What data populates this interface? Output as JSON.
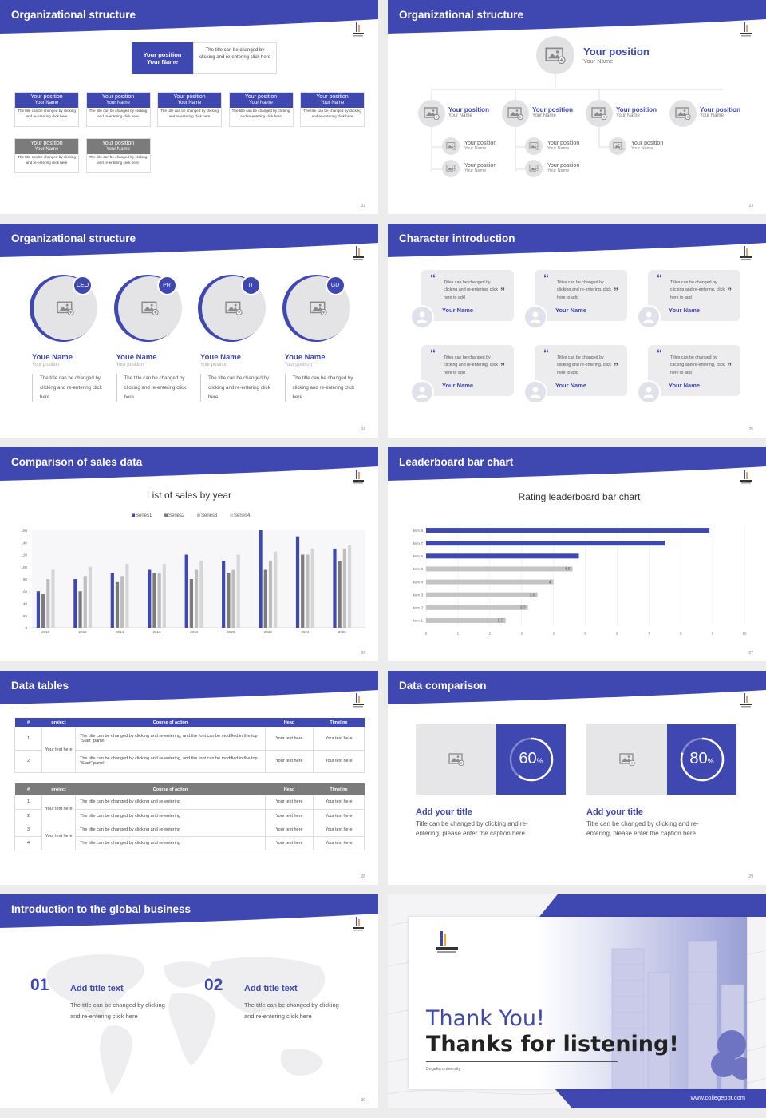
{
  "colors": {
    "accent": "#3f47b1",
    "gray": "#7b7b7b",
    "light": "#e6e6e8"
  },
  "s22": {
    "title": "Organizational structure",
    "page": "22",
    "top": {
      "pos": "Your position",
      "name": "Your Name",
      "desc": "The title can be changed by clicking and re-entering click here"
    },
    "row1": [
      {
        "pos": "Your position",
        "name": "Your Name",
        "desc": "The title can be changed by clicking and re-entering click here"
      },
      {
        "pos": "Your position",
        "name": "Your Name",
        "desc": "The title can be changed by clicking and re-entering click here"
      },
      {
        "pos": "Your position",
        "name": "Your Name",
        "desc": "The title can be changed by clicking and re-entering click here"
      },
      {
        "pos": "Your position",
        "name": "Your Name",
        "desc": "The title can be changed by clicking and re-entering click here"
      },
      {
        "pos": "Your position",
        "name": "Your Name",
        "desc": "The title can be changed by clicking and re-entering click here"
      }
    ],
    "row2": [
      {
        "pos": "Your position",
        "name": "Your Name",
        "desc": "The title can be changed by clicking and re-entering click here"
      },
      {
        "pos": "Your position",
        "name": "Your Name",
        "desc": "The title can be changed by clicking and re-entering click here"
      }
    ]
  },
  "s23": {
    "title": "Organizational structure",
    "page": "23",
    "top": {
      "pos": "Your position",
      "name": "Your Name"
    },
    "level2": [
      {
        "pos": "Your position",
        "name": "Your Name"
      },
      {
        "pos": "Your position",
        "name": "Your Name"
      },
      {
        "pos": "Your position",
        "name": "Your Name"
      },
      {
        "pos": "Your position",
        "name": "Your Name"
      }
    ],
    "level3": [
      {
        "pos": "Your position",
        "name": "Your Name"
      },
      {
        "pos": "Your position",
        "name": "Your Name"
      },
      {
        "pos": "Your position",
        "name": "Your Name"
      },
      {
        "pos": "Your position",
        "name": "Your Name"
      },
      {
        "pos": "Your position",
        "name": "Your Name"
      }
    ]
  },
  "s24": {
    "title": "Organizational structure",
    "page": "24",
    "people": [
      {
        "badge": "CEO",
        "name": "Youe Name",
        "pos": "Your position",
        "desc": "The title can be changed by clicking and re-entering click here"
      },
      {
        "badge": "PR",
        "name": "Youe Name",
        "pos": "Your position",
        "desc": "The title can be changed by clicking and re-entering click here"
      },
      {
        "badge": "IT",
        "name": "Youe Name",
        "pos": "Your position",
        "desc": "The title can be changed by clicking and re-entering click here"
      },
      {
        "badge": "GD",
        "name": "Youe Name",
        "pos": "Your position",
        "desc": "The title can be changed by clicking and re-entering click here"
      }
    ]
  },
  "s25": {
    "title": "Character introduction",
    "page": "25",
    "quote_open": "“",
    "quote_close": "”",
    "cards": [
      {
        "text": "Titles can be changed by clicking and re-entering, click here to add",
        "name": "Your Name"
      },
      {
        "text": "Titles can be changed by clicking and re-entering, click here to add",
        "name": "Your Name"
      },
      {
        "text": "Titles can be changed by clicking and re-entering, click here to add",
        "name": "Your Name"
      },
      {
        "text": "Titles can be changed by clicking and re-entering, click here to add",
        "name": "Your Name"
      },
      {
        "text": "Titles can be changed by clicking and re-entering, click here to add",
        "name": "Your Name"
      },
      {
        "text": "Titles can be changed by clicking and re-entering, click here to add",
        "name": "Your Name"
      }
    ]
  },
  "s26": {
    "title": "Comparison of sales data",
    "page": "26"
  },
  "s27": {
    "title": "Leaderboard bar chart",
    "page": "27"
  },
  "s28": {
    "title": "Data tables",
    "page": "28",
    "t1": {
      "headers": [
        "#",
        "project",
        "Course of action",
        "Head",
        "Timeline"
      ],
      "project": "Your text here",
      "rows": [
        {
          "n": "1",
          "course": "The title can be changed by clicking and re-entering, and the font can be modified in the top \"Start\" panel",
          "head": "Your text here",
          "time": "Your text here"
        },
        {
          "n": "2",
          "course": "The title can be changed by clicking and re-entering, and the font can be modified in the top \"Start\" panel",
          "head": "Your text here",
          "time": "Your text here"
        }
      ]
    },
    "t2": {
      "headers": [
        "#",
        "project",
        "Course of action",
        "Head",
        "Timeline"
      ],
      "project1": "Your text here",
      "project2": "Your text here",
      "rows": [
        {
          "n": "1",
          "course": "The title can be changed by clicking and re-entering",
          "head": "Your text here",
          "time": "Your text here"
        },
        {
          "n": "2",
          "course": "The title can be changed by clicking and re-entering",
          "head": "Your text here",
          "time": "Your text here"
        },
        {
          "n": "3",
          "course": "The title can be changed by clicking and re-entering",
          "head": "Your text here",
          "time": "Your text here"
        },
        {
          "n": "4",
          "course": "The title can be changed by clicking and re-entering",
          "head": "Your text here",
          "time": "Your text here"
        }
      ]
    }
  },
  "s29": {
    "title": "Data comparison",
    "page": "29",
    "items": [
      {
        "pct": "60",
        "unit": "%",
        "progress": 0.6,
        "title": "Add your title",
        "desc": "Title can be changed by clicking and re-entering, please enter the caption here"
      },
      {
        "pct": "80",
        "unit": "%",
        "progress": 0.8,
        "title": "Add your title",
        "desc": "Title can be changed by clicking and re-entering, please enter the caption here"
      }
    ]
  },
  "s30": {
    "title": "Introduction to the global business",
    "page": "30",
    "items": [
      {
        "num": "01",
        "title": "Add title text",
        "desc": "The title can be changed by clicking and re-entering click here"
      },
      {
        "num": "02",
        "title": "Add title text",
        "desc": "The title can be changed by clicking and re-entering click here"
      }
    ]
  },
  "s31": {
    "thanks1": "Thank You!",
    "thanks2": "Thanks for listening!",
    "university": "Bogaka university",
    "site": "www.collegeppt.com"
  },
  "chart_data": [
    {
      "type": "bar",
      "title": "List of sales by year",
      "categories": [
        "2010",
        "2012",
        "2014",
        "2016",
        "2018",
        "2020",
        "2022",
        "2024",
        "2026"
      ],
      "series": [
        {
          "name": "Series1",
          "values": [
            60,
            80,
            90,
            95,
            120,
            110,
            160,
            150,
            130
          ]
        },
        {
          "name": "Series2",
          "values": [
            55,
            60,
            75,
            90,
            80,
            90,
            95,
            120,
            110
          ]
        },
        {
          "name": "Series3",
          "values": [
            80,
            85,
            85,
            90,
            95,
            95,
            110,
            120,
            130
          ]
        },
        {
          "name": "Series4",
          "values": [
            95,
            100,
            105,
            105,
            110,
            120,
            125,
            130,
            135
          ]
        }
      ],
      "ylim": [
        0,
        160
      ],
      "yticks": [
        0,
        20,
        40,
        60,
        80,
        100,
        120,
        140,
        160
      ],
      "legend": "top",
      "grid": false
    },
    {
      "type": "bar",
      "orientation": "horizontal",
      "title": "Rating leaderboard bar chart",
      "categories": [
        "Item 1",
        "Item 2",
        "Item 3",
        "Item 4",
        "Item 5",
        "Item 6",
        "Item 7",
        "Item 8"
      ],
      "values": [
        2.5,
        3.2,
        3.5,
        4,
        4.6,
        4.8,
        7.5,
        8.9
      ],
      "data_labels": [
        "2.5",
        "3.2",
        "3.5",
        "4",
        "4.6",
        "",
        "",
        ""
      ],
      "xlim": [
        0,
        10
      ],
      "xticks": [
        0,
        1,
        2,
        3,
        4,
        5,
        6,
        7,
        8,
        9,
        10
      ],
      "grid": true
    }
  ]
}
